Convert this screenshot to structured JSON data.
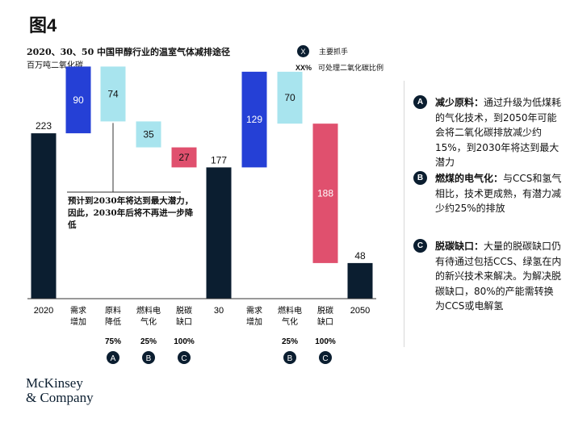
{
  "figure_title": "图4",
  "legend": {
    "badge_label": "X",
    "badge_text": "主要抓手",
    "pct_label": "XX%",
    "pct_text": "可处理二氧化碳比例"
  },
  "annotation": "预计到2030年将达到最大潜力，因此，2030年后将不再进一步降低",
  "levers": [
    {
      "badge": "A",
      "title": "减少原料：",
      "text": "通过升级为低煤耗的气化技术，到2050年可能会将二氧化碳排放减少约15%，到2030年将达到最大潜力"
    },
    {
      "badge": "B",
      "title": "燃煤的电气化：",
      "text": "与CCS和氢气相比，技术更成熟，有潜力减少约25%的排放"
    },
    {
      "badge": "C",
      "title": "脱碳缺口：",
      "text": "大量的脱碳缺口仍有待通过包括CCS、绿氢在内的新兴技术来解决。为解决脱碳缺口，80%的产能需转换为CCS或电解氢"
    }
  ],
  "logo": {
    "line1": "McKinsey",
    "line2": "& Company"
  },
  "colors": {
    "total": "#0b1e30",
    "demand": "#2540d6",
    "feedstock": "#a8e4ee",
    "electrification": "#a8e4ee",
    "gap": "#e0506e",
    "badge": "#0b1e30"
  },
  "chart_data": {
    "type": "bar",
    "subtype": "waterfall",
    "title": "2020、30、50 中国甲醇行业的温室气体减排途径",
    "unit": "百万吨二氧化碳",
    "ylim": [
      0,
      320
    ],
    "grid": false,
    "steps": [
      {
        "label": "2020",
        "kind": "total",
        "value": 223,
        "pct": "",
        "badge": ""
      },
      {
        "label": "需求增加",
        "kind": "increase",
        "value": 90,
        "pct": "",
        "badge": ""
      },
      {
        "label": "原料降低",
        "kind": "decrease",
        "value": 74,
        "pct": "75%",
        "badge": "A"
      },
      {
        "label": "燃料电气化",
        "kind": "decrease",
        "value": 35,
        "pct": "25%",
        "badge": "B"
      },
      {
        "label": "脱碳缺口",
        "kind": "decrease",
        "value": 27,
        "pct": "100%",
        "badge": "C"
      },
      {
        "label": "30",
        "kind": "total",
        "value": 177,
        "pct": "",
        "badge": ""
      },
      {
        "label": "需求增加",
        "kind": "increase",
        "value": 129,
        "pct": "",
        "badge": ""
      },
      {
        "label": "燃料电气化",
        "kind": "decrease",
        "value": 70,
        "pct": "25%",
        "badge": "B"
      },
      {
        "label": "脱碳缺口",
        "kind": "decrease",
        "value": 188,
        "pct": "100%",
        "badge": "C"
      },
      {
        "label": "2050",
        "kind": "total",
        "value": 48,
        "pct": "",
        "badge": ""
      }
    ]
  }
}
